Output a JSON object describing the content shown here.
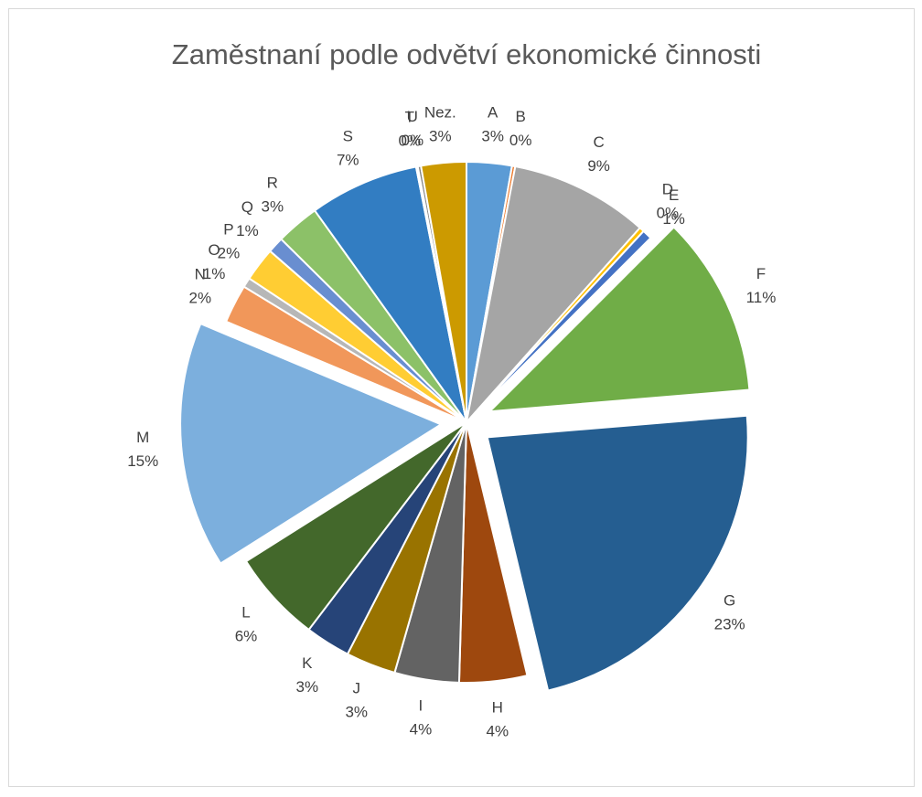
{
  "chart_data": {
    "type": "pie",
    "title": "Zaměstnaní podle odvětví ekonomické činnosti",
    "categories": [
      "A",
      "B",
      "C",
      "D",
      "E",
      "F",
      "G",
      "H",
      "I",
      "J",
      "K",
      "L",
      "M",
      "N",
      "O",
      "P",
      "Q",
      "R",
      "S",
      "T",
      "U",
      "Nez."
    ],
    "values": [
      2.8,
      0.2,
      8.6,
      0.3,
      0.6,
      11.2,
      22.6,
      4.2,
      4.0,
      3.1,
      2.8,
      5.7,
      15.3,
      2.4,
      0.6,
      2.1,
      1.0,
      2.7,
      6.8,
      0.1,
      0.2,
      2.8
    ],
    "value_labels": [
      "3%",
      "0%",
      "9%",
      "0%",
      "1%",
      "11%",
      "23%",
      "4%",
      "4%",
      "3%",
      "3%",
      "6%",
      "15%",
      "2%",
      "1%",
      "2%",
      "1%",
      "3%",
      "7%",
      "0%",
      "0%",
      "3%"
    ],
    "colors": [
      "#5b9bd5",
      "#ed7d31",
      "#a5a5a5",
      "#ffc000",
      "#4472c4",
      "#70ad47",
      "#255e91",
      "#9e480e",
      "#636363",
      "#997300",
      "#264478",
      "#43682b",
      "#7cafdd",
      "#f1975a",
      "#b7b7b7",
      "#ffcd33",
      "#698ed0",
      "#8cc168",
      "#327dc2",
      "#d26012",
      "#848484",
      "#cc9a00"
    ],
    "exploded": [
      false,
      false,
      false,
      false,
      false,
      true,
      true,
      false,
      false,
      false,
      false,
      false,
      true,
      false,
      false,
      false,
      false,
      false,
      false,
      false,
      false,
      false
    ]
  }
}
